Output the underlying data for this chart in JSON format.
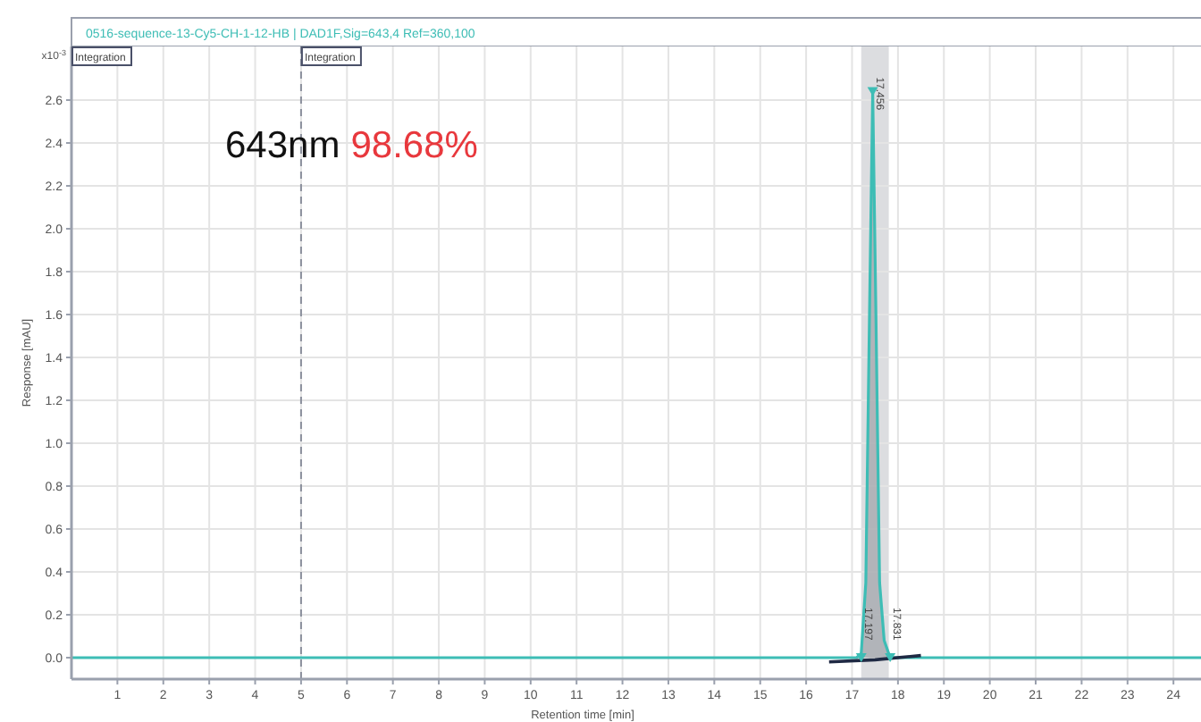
{
  "chart_data": {
    "type": "area",
    "title": "0516-sequence-13-Cy5-CH-1-12-HB | DAD1F,Sig=643,4  Ref=360,100",
    "xlabel": "Retention time [min]",
    "ylabel": "Response [mAU]",
    "series": [
      {
        "color": "#3dbdb5",
        "x": [
          0,
          5,
          10,
          16,
          17.1,
          17.2,
          17.3,
          17.38,
          17.45,
          17.52,
          17.6,
          17.7,
          17.83,
          18,
          20,
          24.6
        ],
        "values": [
          0,
          0,
          0,
          0,
          0,
          0.02,
          0.35,
          1.6,
          2.64,
          1.6,
          0.35,
          0.08,
          0,
          0,
          0,
          0
        ]
      },
      {
        "type": "line",
        "color": "#1f2a44",
        "x": [
          16.5,
          17.5,
          18.5
        ],
        "values": [
          -0.02,
          -0.01,
          0.01
        ]
      },
      {
        "type": "scatter",
        "marker": "triangle",
        "color": "#3dbdb5",
        "x": [
          17.45,
          17.2,
          17.83
        ],
        "values": [
          2.64,
          0,
          0
        ]
      }
    ],
    "xlim": [
      0,
      24.6
    ],
    "ylim": [
      -0.1,
      2.85
    ],
    "xticks": [
      1,
      2,
      3,
      4,
      5,
      6,
      7,
      8,
      9,
      10,
      11,
      12,
      13,
      14,
      15,
      16,
      17,
      18,
      19,
      20,
      21,
      22,
      23,
      24
    ],
    "yticks": [
      {
        "value": 0,
        "label": "0.0"
      },
      {
        "value": 0.2,
        "label": "0.2"
      },
      {
        "value": 0.4,
        "label": "0.4"
      },
      {
        "value": 0.6,
        "label": "0.6"
      },
      {
        "value": 0.8,
        "label": "0.8"
      },
      {
        "value": 1,
        "label": "1.0"
      },
      {
        "value": 1.2,
        "label": "1.2"
      },
      {
        "value": 1.4,
        "label": "1.4"
      },
      {
        "value": 1.6,
        "label": "1.6"
      },
      {
        "value": 1.8,
        "label": "1.8"
      },
      {
        "value": 2,
        "label": "2.0"
      },
      {
        "value": 2.2,
        "label": "2.2"
      },
      {
        "value": 2.4,
        "label": "2.4"
      },
      {
        "value": 2.6,
        "label": "2.6"
      }
    ],
    "grid": true,
    "marker": "none",
    "ref_lines": [
      {
        "axis": "x",
        "value": 5,
        "color": "#8a8f9c",
        "line_style": "dashed"
      }
    ],
    "bands": [
      {
        "axis": "x",
        "from": 17.2,
        "to": 17.8,
        "color": "#dcdde0"
      }
    ],
    "annotations": [
      {
        "text": "17.456",
        "x": 17.45,
        "y": 2.64
      },
      {
        "text": "17.197",
        "x": 17.2,
        "y": 0
      },
      {
        "text": "17.831",
        "x": 17.83,
        "y": 0
      },
      "x10$^{-3}$",
      "Integration",
      "Integration",
      "643nm",
      "98.68%"
    ]
  }
}
